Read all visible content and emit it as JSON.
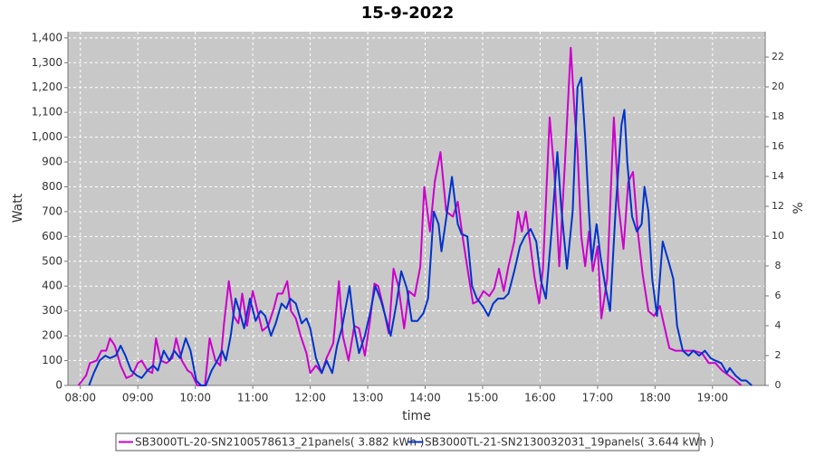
{
  "chart_data": {
    "type": "line",
    "title": "15-9-2022",
    "x_label": "time",
    "y_label": "Watt",
    "y2_label": "%",
    "xlim": [
      "07:47",
      "19:55"
    ],
    "xticks": [
      "08:00",
      "09:00",
      "10:00",
      "11:00",
      "12:00",
      "13:00",
      "14:00",
      "15:00",
      "16:00",
      "17:00",
      "18:00",
      "19:00"
    ],
    "ylim": [
      0,
      1425
    ],
    "yticks": [
      0,
      100,
      200,
      300,
      400,
      500,
      600,
      700,
      800,
      900,
      {
        "value": 1000,
        "label": "1,000"
      },
      {
        "value": 1100,
        "label": "1,100"
      },
      {
        "value": 1200,
        "label": "1,200"
      },
      {
        "value": 1300,
        "label": "1,300"
      },
      {
        "value": 1400,
        "label": "1,400"
      }
    ],
    "y2lim": [
      0,
      23.7
    ],
    "y2ticks": [
      0,
      2,
      4,
      6,
      8,
      10,
      12,
      14,
      16,
      18,
      20,
      22
    ],
    "grid": true,
    "legend": "bottom",
    "series": [
      {
        "name": "SB3000TL-20-SN2100578613_21panels( 3.882 kWh )",
        "color": "#cc00cc",
        "x": [
          "07:58",
          "08:06",
          "08:10",
          "08:17",
          "08:22",
          "08:27",
          "08:31",
          "08:36",
          "08:42",
          "08:48",
          "08:54",
          "09:00",
          "09:04",
          "09:10",
          "09:15",
          "09:19",
          "09:24",
          "09:30",
          "09:36",
          "09:40",
          "09:46",
          "09:52",
          "09:56",
          "10:02",
          "10:10",
          "10:15",
          "10:21",
          "10:26",
          "10:30",
          "10:35",
          "10:40",
          "10:45",
          "10:49",
          "10:54",
          "11:00",
          "11:05",
          "11:10",
          "11:16",
          "11:22",
          "11:26",
          "11:31",
          "11:36",
          "11:40",
          "11:45",
          "11:50",
          "11:56",
          "12:00",
          "12:06",
          "12:12",
          "12:17",
          "12:24",
          "12:30",
          "12:34",
          "12:40",
          "12:46",
          "12:51",
          "12:57",
          "13:02",
          "13:07",
          "13:11",
          "13:16",
          "13:22",
          "13:27",
          "13:32",
          "13:38",
          "13:43",
          "13:49",
          "13:55",
          "13:59",
          "14:05",
          "14:10",
          "14:16",
          "14:22",
          "14:29",
          "14:34",
          "14:39",
          "14:45",
          "14:50",
          "14:55",
          "15:01",
          "15:07",
          "15:12",
          "15:17",
          "15:22",
          "15:27",
          "15:33",
          "15:37",
          "15:41",
          "15:45",
          "15:50",
          "15:54",
          "15:59",
          "16:03",
          "16:10",
          "16:15",
          "16:20",
          "16:26",
          "16:32",
          "16:36",
          "16:39",
          "16:43",
          "16:47",
          "16:51",
          "16:55",
          "17:00",
          "17:04",
          "17:10",
          "17:17",
          "17:22",
          "17:27",
          "17:32",
          "17:37",
          "17:42",
          "17:47",
          "17:53",
          "17:59",
          "18:05",
          "18:09",
          "18:15",
          "18:21",
          "18:30",
          "18:40",
          "18:49",
          "18:56",
          "19:03",
          "19:10",
          "19:17",
          "19:24",
          "19:30"
        ],
        "values": [
          0,
          40,
          90,
          100,
          140,
          140,
          190,
          160,
          80,
          30,
          40,
          90,
          100,
          60,
          50,
          190,
          100,
          90,
          110,
          190,
          100,
          60,
          50,
          0,
          0,
          190,
          100,
          80,
          250,
          420,
          280,
          250,
          370,
          240,
          380,
          300,
          220,
          240,
          310,
          370,
          370,
          420,
          300,
          270,
          200,
          130,
          50,
          80,
          50,
          110,
          170,
          420,
          200,
          100,
          240,
          230,
          120,
          250,
          410,
          400,
          320,
          210,
          470,
          400,
          230,
          380,
          360,
          480,
          800,
          620,
          820,
          940,
          700,
          680,
          740,
          600,
          450,
          330,
          340,
          380,
          360,
          390,
          470,
          380,
          480,
          580,
          700,
          620,
          700,
          560,
          440,
          330,
          470,
          1080,
          850,
          480,
          900,
          1360,
          1100,
          950,
          600,
          480,
          620,
          460,
          560,
          270,
          430,
          1080,
          720,
          550,
          820,
          860,
          620,
          450,
          300,
          280,
          320,
          250,
          150,
          140,
          140,
          140,
          130,
          90,
          90,
          60,
          40,
          20,
          0
        ]
      },
      {
        "name": "SB3000TL-21-SN2130032031_19panels( 3.644 kWh )",
        "color": "#0033cc",
        "x": [
          "08:09",
          "08:14",
          "08:20",
          "08:26",
          "08:31",
          "08:37",
          "08:42",
          "08:47",
          "08:53",
          "08:59",
          "09:04",
          "09:10",
          "09:16",
          "09:21",
          "09:27",
          "09:33",
          "09:38",
          "09:44",
          "09:50",
          "09:55",
          "10:01",
          "10:06",
          "10:11",
          "10:17",
          "10:23",
          "10:28",
          "10:32",
          "10:37",
          "10:42",
          "10:46",
          "10:51",
          "10:57",
          "11:03",
          "11:08",
          "11:13",
          "11:19",
          "11:24",
          "11:30",
          "11:35",
          "11:39",
          "11:45",
          "11:51",
          "11:56",
          "12:00",
          "12:06",
          "12:12",
          "12:17",
          "12:23",
          "12:28",
          "12:33",
          "12:41",
          "12:46",
          "12:51",
          "12:57",
          "13:03",
          "13:08",
          "13:14",
          "13:19",
          "13:24",
          "13:30",
          "13:35",
          "13:41",
          "13:46",
          "13:52",
          "13:58",
          "14:03",
          "14:09",
          "14:14",
          "14:17",
          "14:23",
          "14:28",
          "14:34",
          "14:38",
          "14:44",
          "14:49",
          "14:54",
          "15:00",
          "15:06",
          "15:11",
          "15:16",
          "15:22",
          "15:27",
          "15:33",
          "15:39",
          "15:44",
          "15:50",
          "15:56",
          "16:01",
          "16:06",
          "16:12",
          "16:18",
          "16:22",
          "16:28",
          "16:34",
          "16:39",
          "16:43",
          "16:47",
          "16:51",
          "16:54",
          "16:59",
          "17:03",
          "17:08",
          "17:13",
          "17:19",
          "17:25",
          "17:28",
          "17:31",
          "17:36",
          "17:41",
          "17:46",
          "17:49",
          "17:53",
          "17:57",
          "18:02",
          "18:08",
          "18:14",
          "18:19",
          "18:23",
          "18:29",
          "18:35",
          "18:40",
          "18:46",
          "18:52",
          "18:58",
          "19:03",
          "19:09",
          "19:15",
          "19:18",
          "19:24",
          "19:30",
          "19:35",
          "19:41"
        ],
        "values": [
          0,
          50,
          100,
          120,
          110,
          120,
          160,
          120,
          60,
          40,
          30,
          60,
          80,
          60,
          140,
          100,
          140,
          110,
          190,
          140,
          20,
          0,
          0,
          60,
          100,
          140,
          100,
          200,
          350,
          300,
          230,
          350,
          260,
          300,
          280,
          200,
          250,
          330,
          310,
          350,
          330,
          250,
          270,
          230,
          110,
          50,
          100,
          50,
          160,
          230,
          400,
          230,
          130,
          200,
          300,
          400,
          340,
          270,
          200,
          330,
          460,
          390,
          260,
          260,
          290,
          350,
          700,
          650,
          540,
          700,
          840,
          650,
          610,
          600,
          400,
          350,
          320,
          280,
          330,
          350,
          350,
          370,
          460,
          560,
          600,
          630,
          580,
          420,
          350,
          620,
          940,
          720,
          470,
          700,
          1200,
          1240,
          1000,
          700,
          500,
          650,
          520,
          400,
          300,
          720,
          1050,
          1110,
          900,
          680,
          620,
          650,
          800,
          700,
          430,
          280,
          580,
          500,
          430,
          240,
          140,
          120,
          140,
          120,
          140,
          110,
          100,
          90,
          50,
          70,
          40,
          20,
          20,
          0
        ]
      }
    ]
  }
}
